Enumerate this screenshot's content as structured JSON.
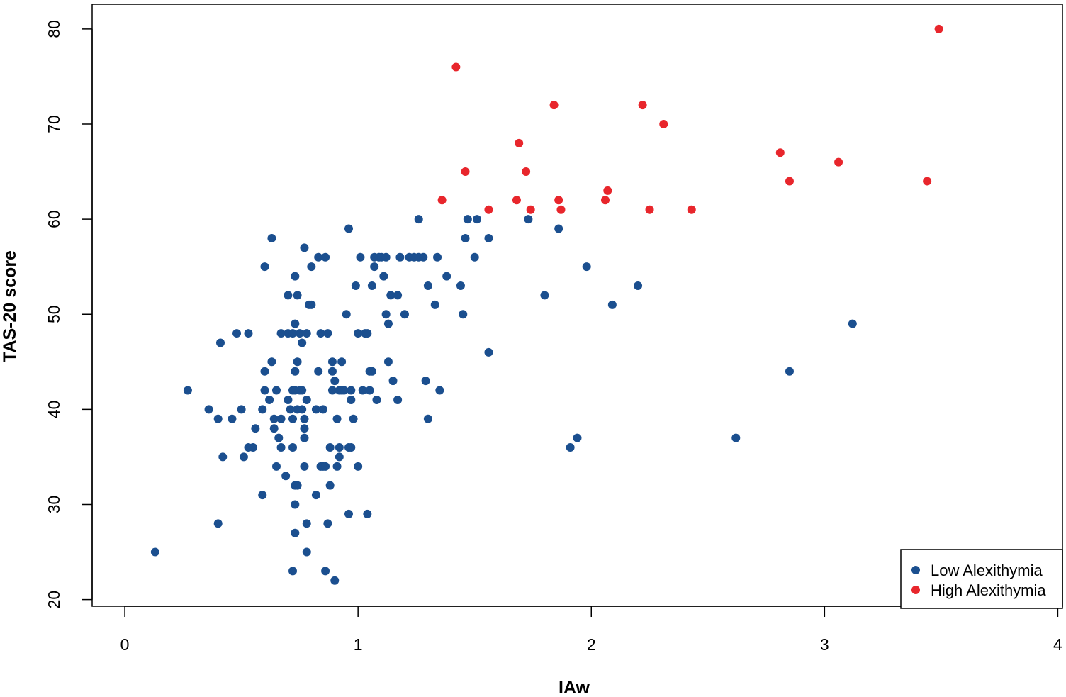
{
  "chart_data": {
    "type": "scatter",
    "title": "",
    "xlabel": "IAw",
    "ylabel": "TAS-20 score",
    "xlim": [
      -0.14,
      4.02
    ],
    "ylim": [
      19.3,
      82.6
    ],
    "xticks": [
      0,
      1,
      2,
      3,
      4
    ],
    "yticks": [
      20,
      30,
      40,
      50,
      60,
      70,
      80
    ],
    "grid": false,
    "legend_position": "bottom-right",
    "series": [
      {
        "name": "Low Alexithymia",
        "color": "#1b4f8f",
        "points": [
          [
            0.13,
            25
          ],
          [
            0.27,
            42
          ],
          [
            0.36,
            40
          ],
          [
            0.4,
            39
          ],
          [
            0.4,
            28
          ],
          [
            0.41,
            47
          ],
          [
            0.42,
            35
          ],
          [
            0.46,
            39
          ],
          [
            0.48,
            48
          ],
          [
            0.5,
            40
          ],
          [
            0.51,
            35
          ],
          [
            0.53,
            36
          ],
          [
            0.53,
            48
          ],
          [
            0.55,
            36
          ],
          [
            0.56,
            38
          ],
          [
            0.59,
            40
          ],
          [
            0.59,
            31
          ],
          [
            0.6,
            55
          ],
          [
            0.6,
            44
          ],
          [
            0.6,
            42
          ],
          [
            0.62,
            41
          ],
          [
            0.63,
            45
          ],
          [
            0.63,
            58
          ],
          [
            0.64,
            39
          ],
          [
            0.64,
            38
          ],
          [
            0.65,
            42
          ],
          [
            0.65,
            34
          ],
          [
            0.66,
            37
          ],
          [
            0.67,
            48
          ],
          [
            0.67,
            39
          ],
          [
            0.67,
            36
          ],
          [
            0.69,
            33
          ],
          [
            0.7,
            48
          ],
          [
            0.7,
            41
          ],
          [
            0.7,
            52
          ],
          [
            0.71,
            40
          ],
          [
            0.72,
            48
          ],
          [
            0.72,
            42
          ],
          [
            0.72,
            39
          ],
          [
            0.72,
            36
          ],
          [
            0.72,
            23
          ],
          [
            0.73,
            54
          ],
          [
            0.73,
            49
          ],
          [
            0.73,
            44
          ],
          [
            0.73,
            42
          ],
          [
            0.73,
            32
          ],
          [
            0.73,
            30
          ],
          [
            0.73,
            27
          ],
          [
            0.74,
            52
          ],
          [
            0.74,
            45
          ],
          [
            0.74,
            40
          ],
          [
            0.74,
            32
          ],
          [
            0.75,
            48
          ],
          [
            0.75,
            42
          ],
          [
            0.76,
            42
          ],
          [
            0.76,
            40
          ],
          [
            0.76,
            47
          ],
          [
            0.77,
            39
          ],
          [
            0.77,
            38
          ],
          [
            0.77,
            37
          ],
          [
            0.77,
            34
          ],
          [
            0.77,
            57
          ],
          [
            0.78,
            48
          ],
          [
            0.78,
            41
          ],
          [
            0.78,
            28
          ],
          [
            0.78,
            25
          ],
          [
            0.79,
            51
          ],
          [
            0.8,
            55
          ],
          [
            0.8,
            51
          ],
          [
            0.82,
            40
          ],
          [
            0.82,
            31
          ],
          [
            0.83,
            56
          ],
          [
            0.83,
            44
          ],
          [
            0.84,
            48
          ],
          [
            0.84,
            34
          ],
          [
            0.85,
            40
          ],
          [
            0.85,
            34
          ],
          [
            0.86,
            56
          ],
          [
            0.86,
            34
          ],
          [
            0.86,
            23
          ],
          [
            0.87,
            48
          ],
          [
            0.87,
            28
          ],
          [
            0.88,
            36
          ],
          [
            0.88,
            32
          ],
          [
            0.89,
            42
          ],
          [
            0.89,
            45
          ],
          [
            0.89,
            44
          ],
          [
            0.9,
            43
          ],
          [
            0.9,
            22
          ],
          [
            0.91,
            39
          ],
          [
            0.91,
            34
          ],
          [
            0.92,
            36
          ],
          [
            0.92,
            42
          ],
          [
            0.92,
            35
          ],
          [
            0.93,
            45
          ],
          [
            0.93,
            42
          ],
          [
            0.94,
            42
          ],
          [
            0.95,
            50
          ],
          [
            0.96,
            59
          ],
          [
            0.96,
            36
          ],
          [
            0.96,
            29
          ],
          [
            0.97,
            42
          ],
          [
            0.97,
            41
          ],
          [
            0.97,
            36
          ],
          [
            0.98,
            39
          ],
          [
            0.99,
            53
          ],
          [
            1.0,
            48
          ],
          [
            1.0,
            34
          ],
          [
            1.01,
            56
          ],
          [
            1.02,
            42
          ],
          [
            1.03,
            48
          ],
          [
            1.04,
            48
          ],
          [
            1.04,
            29
          ],
          [
            1.05,
            44
          ],
          [
            1.05,
            42
          ],
          [
            1.06,
            53
          ],
          [
            1.06,
            44
          ],
          [
            1.07,
            55
          ],
          [
            1.07,
            56
          ],
          [
            1.08,
            41
          ],
          [
            1.09,
            56
          ],
          [
            1.1,
            56
          ],
          [
            1.11,
            54
          ],
          [
            1.12,
            56
          ],
          [
            1.12,
            50
          ],
          [
            1.13,
            49
          ],
          [
            1.13,
            45
          ],
          [
            1.14,
            52
          ],
          [
            1.15,
            43
          ],
          [
            1.17,
            52
          ],
          [
            1.17,
            41
          ],
          [
            1.18,
            56
          ],
          [
            1.2,
            50
          ],
          [
            1.22,
            56
          ],
          [
            1.24,
            56
          ],
          [
            1.26,
            60
          ],
          [
            1.26,
            56
          ],
          [
            1.28,
            56
          ],
          [
            1.29,
            43
          ],
          [
            1.3,
            53
          ],
          [
            1.3,
            39
          ],
          [
            1.33,
            51
          ],
          [
            1.34,
            56
          ],
          [
            1.35,
            42
          ],
          [
            1.38,
            54
          ],
          [
            1.44,
            53
          ],
          [
            1.45,
            50
          ],
          [
            1.46,
            58
          ],
          [
            1.47,
            60
          ],
          [
            1.5,
            56
          ],
          [
            1.51,
            60
          ],
          [
            1.56,
            58
          ],
          [
            1.56,
            46
          ],
          [
            1.73,
            60
          ],
          [
            1.8,
            52
          ],
          [
            1.86,
            59
          ],
          [
            1.91,
            36
          ],
          [
            1.94,
            37
          ],
          [
            1.98,
            55
          ],
          [
            2.09,
            51
          ],
          [
            2.2,
            53
          ],
          [
            2.62,
            37
          ],
          [
            2.85,
            44
          ],
          [
            3.12,
            49
          ]
        ]
      },
      {
        "name": "High Alexithymia",
        "color": "#e8262c",
        "points": [
          [
            1.36,
            62
          ],
          [
            1.42,
            76
          ],
          [
            1.46,
            65
          ],
          [
            1.56,
            61
          ],
          [
            1.68,
            62
          ],
          [
            1.69,
            68
          ],
          [
            1.72,
            65
          ],
          [
            1.74,
            61
          ],
          [
            1.84,
            72
          ],
          [
            1.86,
            62
          ],
          [
            1.87,
            61
          ],
          [
            2.06,
            62
          ],
          [
            2.07,
            63
          ],
          [
            2.22,
            72
          ],
          [
            2.25,
            61
          ],
          [
            2.31,
            70
          ],
          [
            2.43,
            61
          ],
          [
            2.81,
            67
          ],
          [
            2.85,
            64
          ],
          [
            3.06,
            66
          ],
          [
            3.44,
            64
          ],
          [
            3.49,
            80
          ]
        ]
      }
    ]
  }
}
